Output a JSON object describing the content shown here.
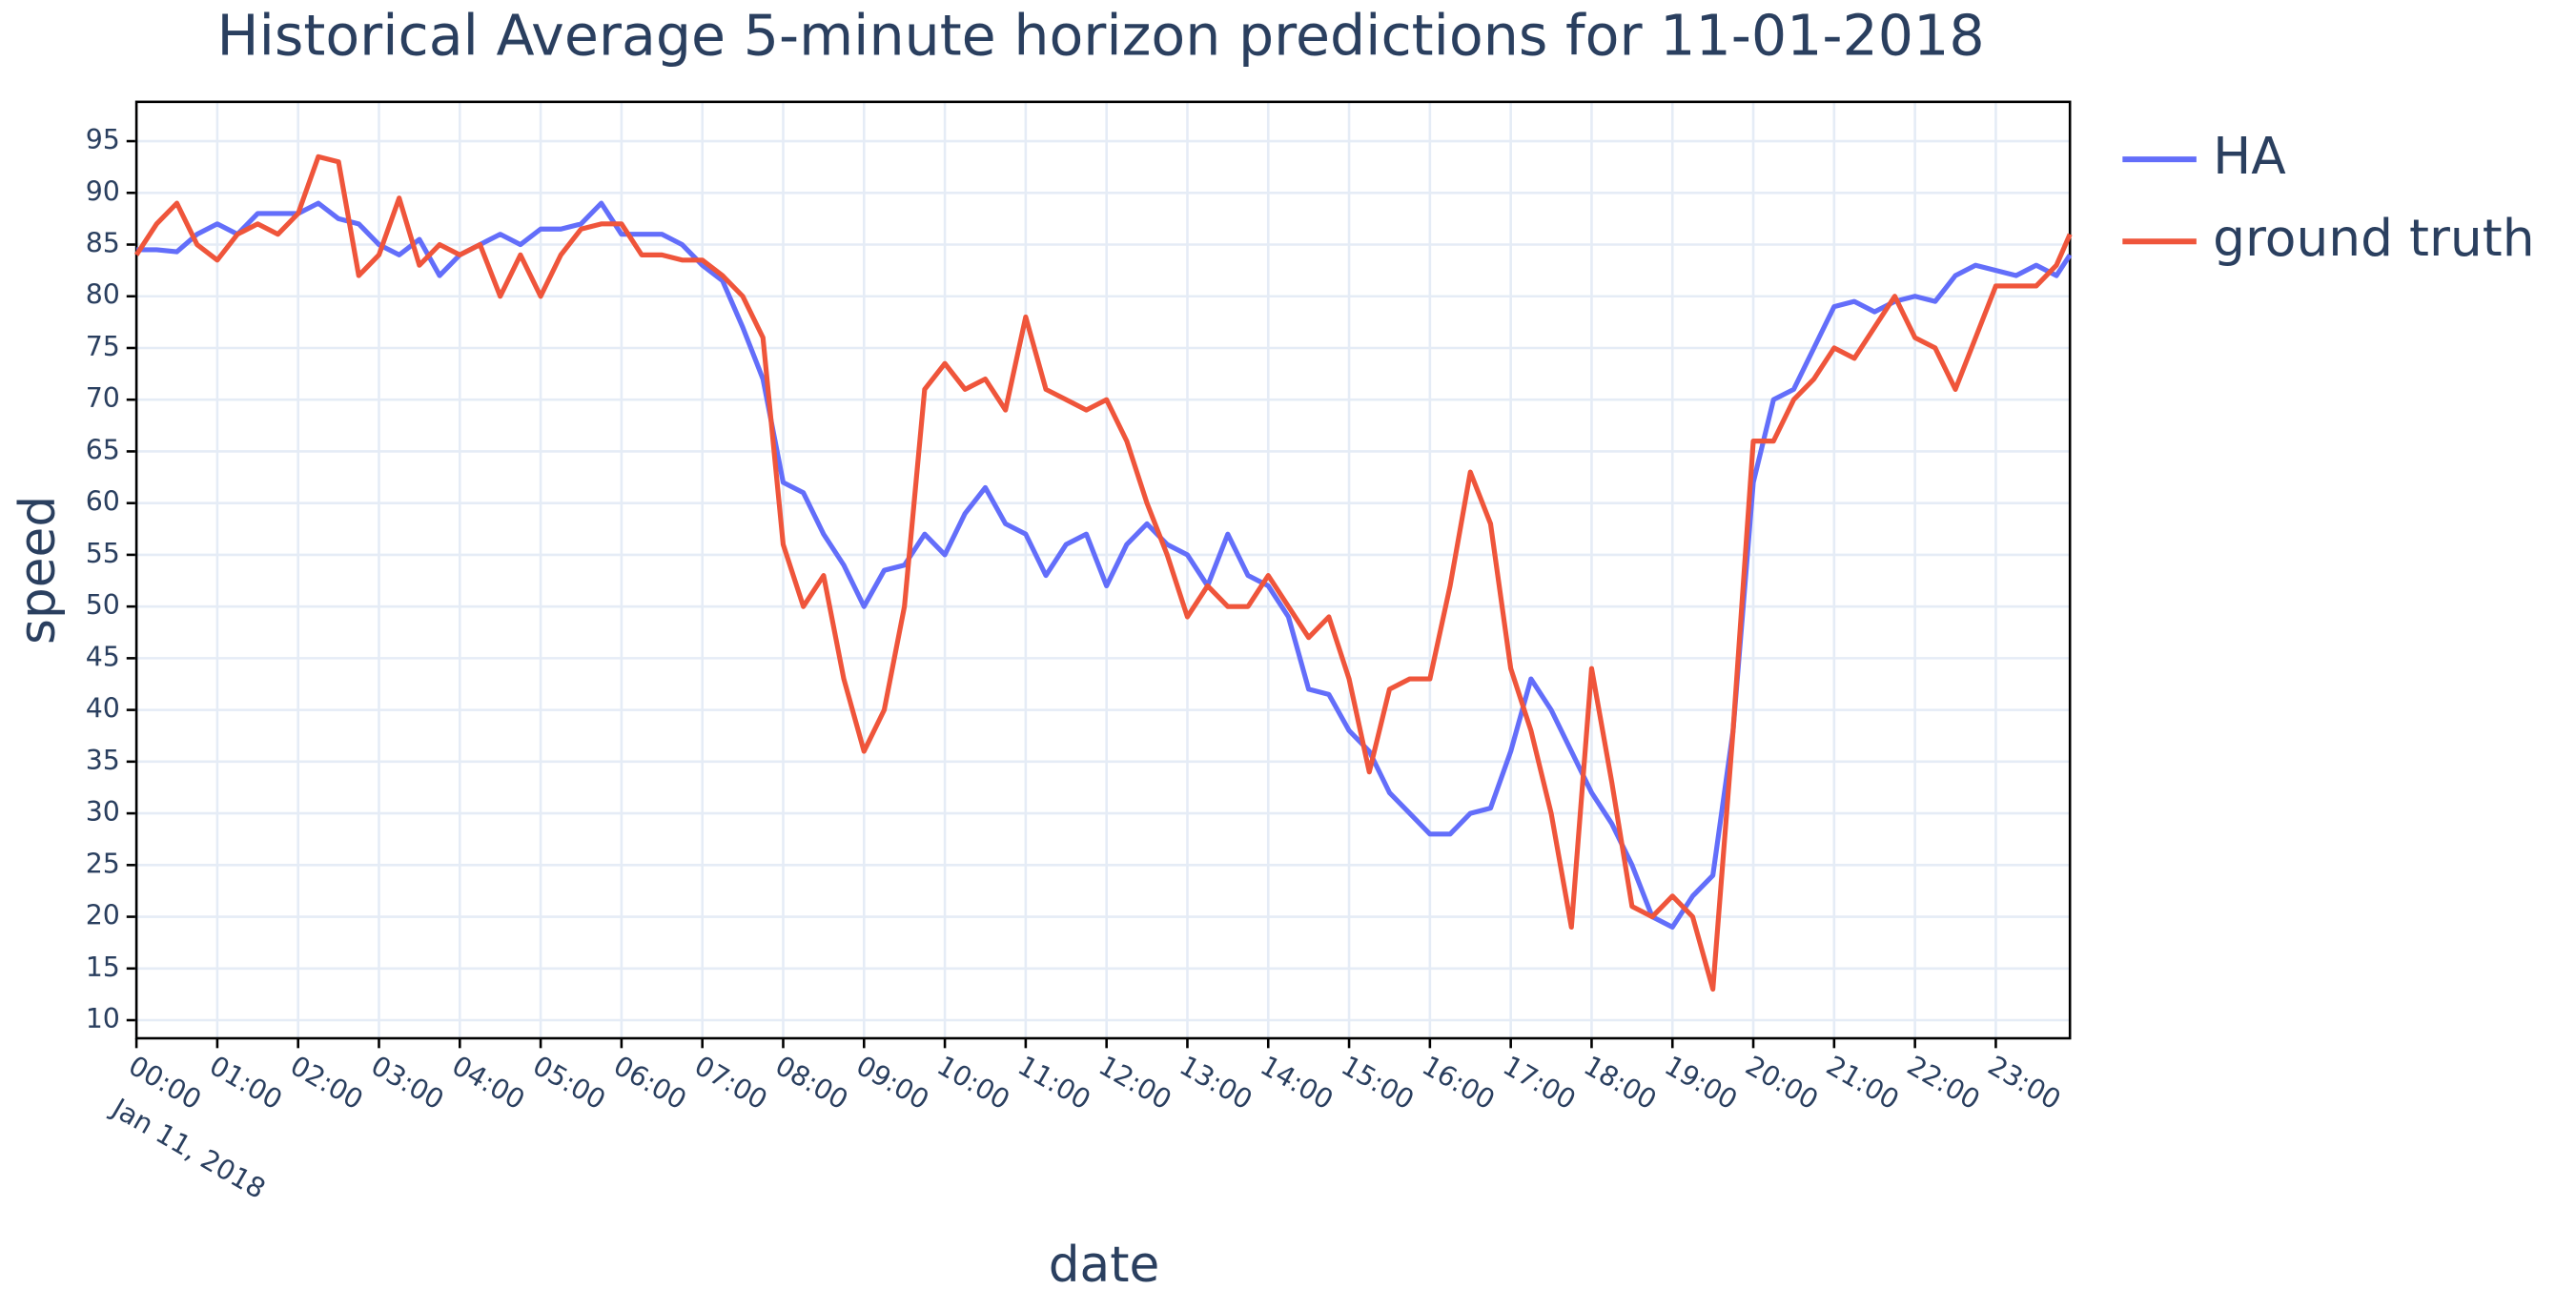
{
  "chart_data": {
    "type": "line",
    "title": "Historical Average 5-minute horizon predictions for 11-01-2018",
    "x_label": "date",
    "y_label": "speed",
    "x_date_label": "Jan 11, 2018",
    "x": [
      0,
      0.25,
      0.5,
      0.75,
      1,
      1.25,
      1.5,
      1.75,
      2,
      2.25,
      2.5,
      2.75,
      3,
      3.25,
      3.5,
      3.75,
      4,
      4.25,
      4.5,
      4.75,
      5,
      5.25,
      5.5,
      5.75,
      6,
      6.25,
      6.5,
      6.75,
      7,
      7.25,
      7.5,
      7.75,
      8,
      8.25,
      8.5,
      8.75,
      9,
      9.25,
      9.5,
      9.75,
      10,
      10.25,
      10.5,
      10.75,
      11,
      11.25,
      11.5,
      11.75,
      12,
      12.25,
      12.5,
      12.75,
      13,
      13.25,
      13.5,
      13.75,
      14,
      14.25,
      14.5,
      14.75,
      15,
      15.25,
      15.5,
      15.75,
      16,
      16.25,
      16.5,
      16.75,
      17,
      17.25,
      17.5,
      17.75,
      18,
      18.25,
      18.5,
      18.75,
      19,
      19.25,
      19.5,
      19.75,
      20,
      20.25,
      20.5,
      20.75,
      21,
      21.25,
      21.5,
      21.75,
      22,
      22.25,
      22.5,
      22.75,
      23,
      23.25,
      23.5,
      23.75,
      23.917
    ],
    "series": [
      {
        "name": "HA",
        "color": "#636efa",
        "values": [
          84.5,
          84.5,
          84.3,
          86,
          87,
          86,
          88,
          88,
          88,
          89,
          87.5,
          87,
          85,
          84,
          85.5,
          82,
          84,
          85,
          86,
          85,
          86.5,
          86.5,
          87,
          89,
          86,
          86,
          86,
          85,
          83,
          81.5,
          77,
          72,
          62,
          61,
          57,
          54,
          50,
          53.5,
          54,
          57,
          55,
          59,
          61.5,
          58,
          57,
          53,
          56,
          57,
          52,
          56,
          58,
          56,
          55,
          52,
          57,
          53,
          52,
          49,
          42,
          41.5,
          38,
          36,
          32,
          30,
          28,
          28,
          30,
          30.5,
          36,
          43,
          40,
          36,
          32,
          29,
          25,
          20,
          19,
          22,
          24,
          38,
          62,
          70,
          71,
          75,
          79,
          79.5,
          78.5,
          79.5,
          80,
          79.5,
          82,
          83,
          82.5,
          82,
          83,
          82,
          84
        ]
      },
      {
        "name": "ground truth",
        "color": "#ef553b",
        "values": [
          84,
          87,
          89,
          85,
          83.5,
          86,
          87,
          86,
          88,
          93.5,
          93,
          82,
          84,
          89.5,
          83,
          85,
          84,
          85,
          80,
          84,
          80,
          84,
          86.5,
          87,
          87,
          84,
          84,
          83.5,
          83.5,
          82,
          80,
          76,
          56,
          50,
          53,
          43,
          36,
          40,
          50,
          71,
          73.5,
          71,
          72,
          69,
          78,
          71,
          70,
          69,
          70,
          66,
          60,
          55,
          49,
          52,
          50,
          50,
          53,
          50,
          47,
          49,
          43,
          34,
          42,
          43,
          43,
          52,
          63,
          58,
          44,
          38,
          30,
          19,
          44,
          33,
          21,
          20,
          22,
          20,
          13,
          38,
          66,
          66,
          70,
          72,
          75,
          74,
          77,
          80,
          76,
          75,
          71,
          76,
          81,
          81,
          81,
          83,
          86
        ]
      }
    ],
    "xlim": [
      0,
      23.917
    ],
    "ylim": [
      8.25,
      98.8
    ],
    "xticks": [
      {
        "value": 0,
        "label": "00:00"
      },
      {
        "value": 1,
        "label": "01:00"
      },
      {
        "value": 2,
        "label": "02:00"
      },
      {
        "value": 3,
        "label": "03:00"
      },
      {
        "value": 4,
        "label": "04:00"
      },
      {
        "value": 5,
        "label": "05:00"
      },
      {
        "value": 6,
        "label": "06:00"
      },
      {
        "value": 7,
        "label": "07:00"
      },
      {
        "value": 8,
        "label": "08:00"
      },
      {
        "value": 9,
        "label": "09:00"
      },
      {
        "value": 10,
        "label": "10:00"
      },
      {
        "value": 11,
        "label": "11:00"
      },
      {
        "value": 12,
        "label": "12:00"
      },
      {
        "value": 13,
        "label": "13:00"
      },
      {
        "value": 14,
        "label": "14:00"
      },
      {
        "value": 15,
        "label": "15:00"
      },
      {
        "value": 16,
        "label": "16:00"
      },
      {
        "value": 17,
        "label": "17:00"
      },
      {
        "value": 18,
        "label": "18:00"
      },
      {
        "value": 19,
        "label": "19:00"
      },
      {
        "value": 20,
        "label": "20:00"
      },
      {
        "value": 21,
        "label": "21:00"
      },
      {
        "value": 22,
        "label": "22:00"
      },
      {
        "value": 23,
        "label": "23:00"
      }
    ],
    "yticks": [
      10,
      15,
      20,
      25,
      30,
      35,
      40,
      45,
      50,
      55,
      60,
      65,
      70,
      75,
      80,
      85,
      90,
      95
    ],
    "grid": true,
    "legend": "right"
  }
}
